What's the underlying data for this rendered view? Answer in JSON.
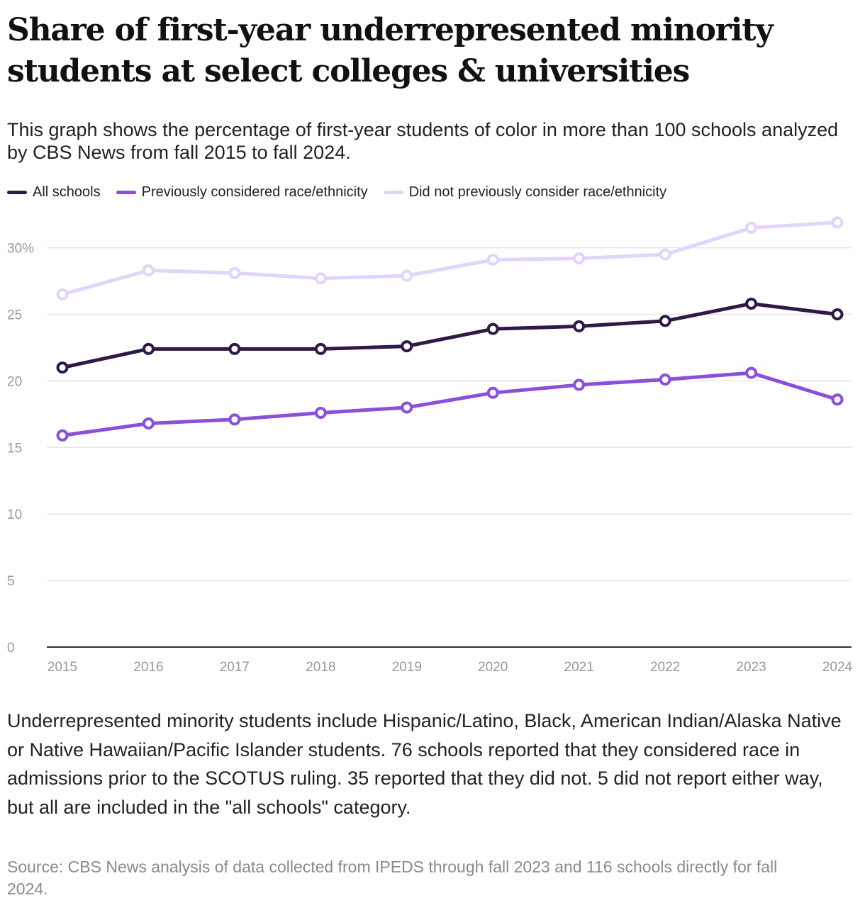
{
  "title": "Share of first-year underrepresented minority students at select colleges & universities",
  "subtitle": "This graph shows the percentage of first-year students of color in more than 100 schools analyzed by CBS News from fall 2015 to fall 2024.",
  "legend": [
    {
      "label": "All schools",
      "color": "#2e1a47"
    },
    {
      "label": "Previously considered race/ethnicity",
      "color": "#8a4fdb"
    },
    {
      "label": "Did not previously consider race/ethnicity",
      "color": "#e3d4fb"
    }
  ],
  "chart_data": {
    "type": "line",
    "title": "Share of first-year underrepresented minority students at select colleges & universities",
    "xlabel": "",
    "ylabel": "",
    "x": [
      "2015",
      "2016",
      "2017",
      "2018",
      "2019",
      "2020",
      "2021",
      "2022",
      "2023",
      "2024"
    ],
    "ylim": [
      0,
      32
    ],
    "yticks": [
      0,
      5,
      10,
      15,
      20,
      25,
      30
    ],
    "ytick_labels": [
      "0",
      "5",
      "10",
      "15",
      "20",
      "25",
      "30%"
    ],
    "grid": true,
    "series": [
      {
        "name": "All schools",
        "color": "#2e1a47",
        "values": [
          21.0,
          22.4,
          22.4,
          22.4,
          22.6,
          23.9,
          24.1,
          24.5,
          25.8,
          25.0
        ]
      },
      {
        "name": "Previously considered race/ethnicity",
        "color": "#8a4fdb",
        "values": [
          15.9,
          16.8,
          17.1,
          17.6,
          18.0,
          19.1,
          19.7,
          20.1,
          20.6,
          18.6
        ]
      },
      {
        "name": "Did not previously consider race/ethnicity",
        "color": "#e3d4fb",
        "values": [
          26.5,
          28.3,
          28.1,
          27.7,
          27.9,
          29.1,
          29.2,
          29.5,
          31.5,
          31.9
        ]
      }
    ]
  },
  "note": "Underrepresented minority students include Hispanic/Latino, Black, American Indian/Alaska Native or Native Hawaiian/Pacific Islander students. 76 schools reported that they considered race in admissions prior to the SCOTUS ruling. 35 reported that they did not. 5 did not report either way, but all are included in the \"all schools\" category.",
  "source": "Source: CBS News analysis of data collected from IPEDS through fall 2023 and 116 schools directly for fall 2024."
}
